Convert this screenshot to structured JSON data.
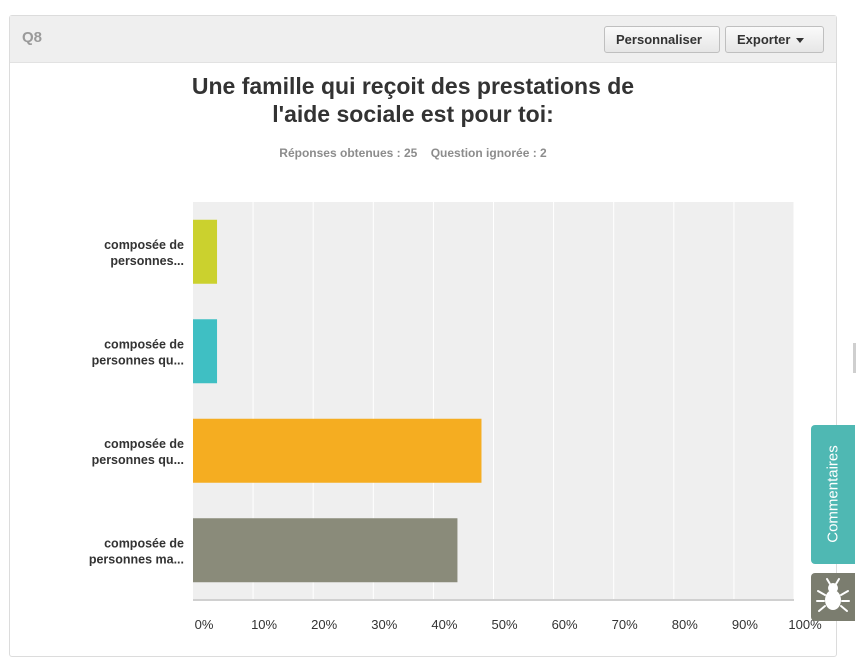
{
  "question": {
    "number": "Q8",
    "buttons": {
      "customize": "Personnaliser",
      "export": "Exporter"
    }
  },
  "chart_data": {
    "type": "bar",
    "orientation": "horizontal",
    "title": "Une famille qui reçoit des prestations de l'aide sociale est pour toi:",
    "title_lines": [
      "Une famille qui reçoit des prestations de",
      "l'aide sociale est pour toi:"
    ],
    "stats": {
      "answered": "Réponses obtenues : 25",
      "skipped": "Question ignorée : 2"
    },
    "categories": [
      [
        "composée de",
        "personnes..."
      ],
      [
        "composée de",
        "personnes qu..."
      ],
      [
        "composée de",
        "personnes qu..."
      ],
      [
        "composée de",
        "personnes ma..."
      ]
    ],
    "values": [
      4,
      4,
      48,
      44
    ],
    "colors": [
      "#cbd12e",
      "#3fbfc3",
      "#f5ad21",
      "#8a8b7a"
    ],
    "xlim": [
      0,
      100
    ],
    "ticks": [
      "0%",
      "10%",
      "20%",
      "30%",
      "40%",
      "50%",
      "60%",
      "70%",
      "80%",
      "90%",
      "100%"
    ],
    "grid": true
  },
  "side": {
    "comments_label": "Commentaires",
    "bug_icon": "bug-icon"
  }
}
